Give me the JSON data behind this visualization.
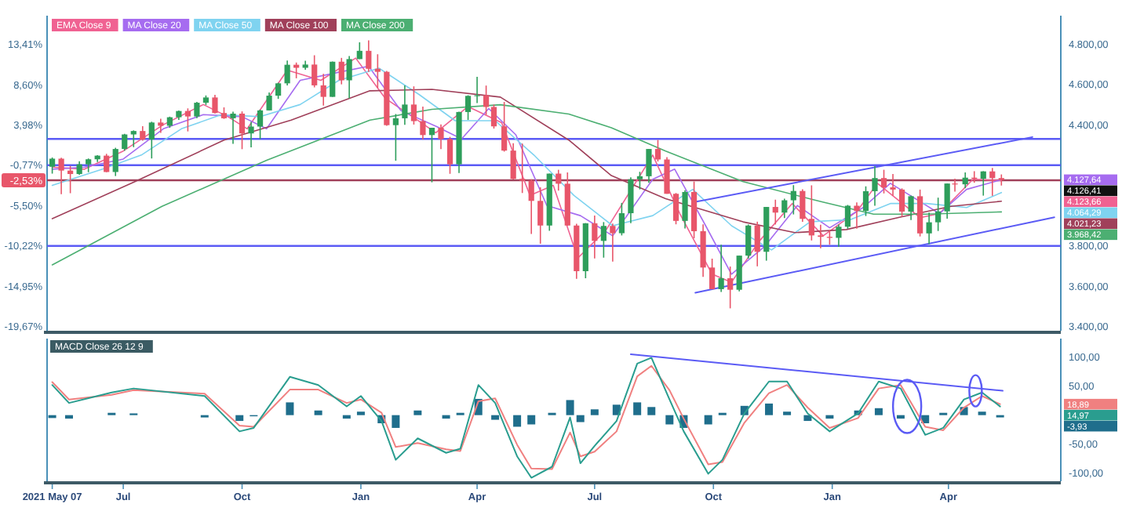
{
  "chart_data": [
    {
      "type": "candlestick",
      "colors": [
        "#2e9e5b",
        "#e8566a",
        "#e8566a",
        "#2e9e5b",
        "#2e9e5b",
        "#2e9e5b",
        "#e8566a",
        "#2e9e5b",
        "#2e9e5b",
        "#2e9e5b",
        "#e8566a",
        "#2e9e5b",
        "#e8566a",
        "#2e9e5b",
        "#2e9e5b",
        "#e8566a",
        "#2e9e5b",
        "#2e9e5b",
        "#e8566a",
        "#e8566a",
        "#2e9e5b",
        "#e8566a",
        "#2e9e5b",
        "#2e9e5b",
        "#2e9e5b",
        "#2e9e5b",
        "#2e9e5b",
        "#e8566a",
        "#2e9e5b",
        "#e8566a",
        "#e8566a",
        "#2e9e5b",
        "#e8566a",
        "#2e9e5b",
        "#2e9e5b",
        "#e8566a",
        "#e8566a",
        "#e8566a",
        "#2e9e5b",
        "#2e9e5b",
        "#e8566a",
        "#e8566a",
        "#2e9e5b",
        "#e8566a",
        "#e8566a",
        "#2e9e5b",
        "#2e9e5b",
        "#2e9e5b",
        "#e8566a",
        "#e8566a",
        "#e8566a",
        "#e8566a",
        "#e8566a",
        "#e8566a",
        "#e8566a",
        "#2e9e5b",
        "#e8566a",
        "#e8566a",
        "#e8566a",
        "#2e9e5b",
        "#e8566a",
        "#2e9e5b",
        "#e8566a",
        "#2e9e5b",
        "#2e9e5b",
        "#2e9e5b",
        "#2e9e5b",
        "#e8566a",
        "#e8566a",
        "#e8566a",
        "#2e9e5b",
        "#e8566a",
        "#e8566a",
        "#e8566a",
        "#2e9e5b",
        "#e8566a",
        "#2e9e5b",
        "#2e9e5b",
        "#e8566a",
        "#2e9e5b",
        "#e8566a",
        "#2e9e5b",
        "#2e9e5b",
        "#e8566a",
        "#e8566a",
        "#e8566a",
        "#e8566a",
        "#2e9e5b",
        "#2e9e5b",
        "#e8566a",
        "#2e9e5b",
        "#2e9e5b",
        "#e8566a",
        "#e8566a",
        "#e8566a",
        "#2e9e5b",
        "#e8566a",
        "#2e9e5b",
        "#2e9e5b",
        "#2e9e5b",
        "#e8566a",
        "#2e9e5b",
        "#e8566a",
        "#2e9e5b",
        "#e8566a",
        "#e8566a"
      ],
      "x": [
        "2021-05-07",
        "2021-05-14",
        "2021-05-21",
        "2021-05-28",
        "2021-06-04",
        "2021-06-11",
        "2021-06-18",
        "2021-06-25",
        "2021-07-02",
        "2021-07-09",
        "2021-07-16",
        "2021-07-23",
        "2021-07-30",
        "2021-08-06",
        "2021-08-13",
        "2021-08-20",
        "2021-08-27",
        "2021-09-03",
        "2021-09-10",
        "2021-09-17",
        "2021-09-24",
        "2021-10-01",
        "2021-10-08",
        "2021-10-15",
        "2021-10-22",
        "2021-10-29",
        "2021-11-05",
        "2021-11-12",
        "2021-11-19",
        "2021-11-26",
        "2021-12-03",
        "2021-12-10",
        "2021-12-17",
        "2021-12-23",
        "2021-12-31",
        "2022-01-07",
        "2022-01-14",
        "2022-01-21",
        "2022-01-28",
        "2022-02-04",
        "2022-02-11",
        "2022-02-18",
        "2022-02-25",
        "2022-03-04",
        "2022-03-11",
        "2022-03-18",
        "2022-03-25",
        "2022-04-01",
        "2022-04-08",
        "2022-04-14",
        "2022-04-22",
        "2022-04-29",
        "2022-05-06",
        "2022-05-13",
        "2022-05-20",
        "2022-05-27",
        "2022-06-03",
        "2022-06-10",
        "2022-06-17",
        "2022-06-24",
        "2022-07-01",
        "2022-07-08",
        "2022-07-15",
        "2022-07-22",
        "2022-07-29",
        "2022-08-05",
        "2022-08-12",
        "2022-08-19",
        "2022-08-26",
        "2022-09-02",
        "2022-09-09",
        "2022-09-16",
        "2022-09-23",
        "2022-09-30",
        "2022-10-07",
        "2022-10-14",
        "2022-10-21",
        "2022-10-28",
        "2022-11-04",
        "2022-11-11",
        "2022-11-18",
        "2022-11-25",
        "2022-12-02",
        "2022-12-09",
        "2022-12-16",
        "2022-12-23",
        "2022-12-30",
        "2023-01-06",
        "2023-01-13",
        "2023-01-20",
        "2023-01-27",
        "2023-02-03",
        "2023-02-10",
        "2023-02-17",
        "2023-02-24",
        "2023-03-03",
        "2023-03-10",
        "2023-03-17",
        "2023-03-24",
        "2023-03-31",
        "2023-04-06",
        "2023-04-14",
        "2023-04-21",
        "2023-04-28",
        "2023-05-05",
        "2023-05-12"
      ],
      "ohlc": [
        [
          4192,
          4238,
          4158,
          4232
        ],
        [
          4232,
          4237,
          4056,
          4173
        ],
        [
          4173,
          4196,
          4061,
          4156
        ],
        [
          4156,
          4219,
          4152,
          4204
        ],
        [
          4204,
          4233,
          4165,
          4229
        ],
        [
          4229,
          4249,
          4215,
          4247
        ],
        [
          4247,
          4256,
          4165,
          4166
        ],
        [
          4166,
          4286,
          4146,
          4280
        ],
        [
          4280,
          4355,
          4271,
          4352
        ],
        [
          4352,
          4372,
          4289,
          4369
        ],
        [
          4369,
          4393,
          4321,
          4327
        ],
        [
          4327,
          4415,
          4233,
          4411
        ],
        [
          4411,
          4430,
          4360,
          4395
        ],
        [
          4395,
          4440,
          4385,
          4437
        ],
        [
          4437,
          4470,
          4424,
          4468
        ],
        [
          4468,
          4481,
          4367,
          4441
        ],
        [
          4441,
          4513,
          4433,
          4509
        ],
        [
          4509,
          4545,
          4498,
          4535
        ],
        [
          4535,
          4548,
          4456,
          4458
        ],
        [
          4458,
          4486,
          4429,
          4432
        ],
        [
          4432,
          4465,
          4306,
          4455
        ],
        [
          4455,
          4466,
          4279,
          4357
        ],
        [
          4357,
          4414,
          4288,
          4391
        ],
        [
          4391,
          4475,
          4329,
          4471
        ],
        [
          4471,
          4560,
          4471,
          4544
        ],
        [
          4544,
          4608,
          4528,
          4605
        ],
        [
          4605,
          4718,
          4595,
          4697
        ],
        [
          4697,
          4708,
          4630,
          4682
        ],
        [
          4682,
          4717,
          4672,
          4698
        ],
        [
          4698,
          4744,
          4585,
          4595
        ],
        [
          4595,
          4652,
          4495,
          4538
        ],
        [
          4538,
          4713,
          4538,
          4712
        ],
        [
          4712,
          4731,
          4600,
          4620
        ],
        [
          4620,
          4740,
          4531,
          4725
        ],
        [
          4725,
          4808,
          4725,
          4766
        ],
        [
          4766,
          4818,
          4662,
          4677
        ],
        [
          4677,
          4749,
          4582,
          4662
        ],
        [
          4662,
          4666,
          4395,
          4398
        ],
        [
          4398,
          4453,
          4222,
          4432
        ],
        [
          4432,
          4595,
          4400,
          4500
        ],
        [
          4500,
          4590,
          4401,
          4418
        ],
        [
          4418,
          4490,
          4327,
          4349
        ],
        [
          4349,
          4385,
          4115,
          4385
        ],
        [
          4385,
          4402,
          4279,
          4329
        ],
        [
          4329,
          4340,
          4157,
          4204
        ],
        [
          4204,
          4465,
          4161,
          4463
        ],
        [
          4463,
          4546,
          4424,
          4543
        ],
        [
          4543,
          4637,
          4507,
          4546
        ],
        [
          4546,
          4594,
          4450,
          4488
        ],
        [
          4488,
          4500,
          4381,
          4392
        ],
        [
          4392,
          4513,
          4267,
          4272
        ],
        [
          4272,
          4308,
          4129,
          4132
        ],
        [
          4132,
          4307,
          4062,
          4123
        ],
        [
          4123,
          4130,
          3859,
          4023
        ],
        [
          4023,
          4090,
          3811,
          3901
        ],
        [
          3901,
          4158,
          3875,
          4158
        ],
        [
          4158,
          4177,
          4074,
          4108
        ],
        [
          4108,
          4164,
          3900,
          3901
        ],
        [
          3901,
          3910,
          3637,
          3675
        ],
        [
          3675,
          3913,
          3640,
          3912
        ],
        [
          3912,
          3950,
          3738,
          3825
        ],
        [
          3825,
          3918,
          3742,
          3899
        ],
        [
          3899,
          3911,
          3722,
          3863
        ],
        [
          3863,
          4013,
          3852,
          3962
        ],
        [
          3962,
          4140,
          3913,
          4130
        ],
        [
          4130,
          4167,
          4080,
          4145
        ],
        [
          4145,
          4280,
          4112,
          4280
        ],
        [
          4280,
          4325,
          4218,
          4228
        ],
        [
          4228,
          4240,
          4058,
          4058
        ],
        [
          4058,
          4062,
          3907,
          3924
        ],
        [
          3924,
          4076,
          3886,
          4067
        ],
        [
          4067,
          4119,
          3838,
          3873
        ],
        [
          3873,
          3907,
          3647,
          3693
        ],
        [
          3693,
          3737,
          3585,
          3586
        ],
        [
          3586,
          3806,
          3572,
          3640
        ],
        [
          3640,
          3698,
          3491,
          3583
        ],
        [
          3583,
          3752,
          3575,
          3752
        ],
        [
          3752,
          3906,
          3737,
          3901
        ],
        [
          3901,
          3920,
          3699,
          3771
        ],
        [
          3771,
          3993,
          3727,
          3993
        ],
        [
          3993,
          4029,
          3906,
          3965
        ],
        [
          3965,
          4034,
          3938,
          4026
        ],
        [
          4026,
          4101,
          3956,
          4072
        ],
        [
          4072,
          4080,
          3919,
          3934
        ],
        [
          3934,
          4100,
          3827,
          3852
        ],
        [
          3852,
          3905,
          3788,
          3845
        ],
        [
          3845,
          3878,
          3806,
          3840
        ],
        [
          3840,
          3906,
          3795,
          3895
        ],
        [
          3895,
          4003,
          3885,
          3999
        ],
        [
          3999,
          4015,
          3885,
          3973
        ],
        [
          3973,
          4095,
          3948,
          4071
        ],
        [
          4071,
          4195,
          3999,
          4136
        ],
        [
          4136,
          4177,
          4060,
          4090
        ],
        [
          4090,
          4156,
          4048,
          4079
        ],
        [
          4079,
          4085,
          3944,
          3970
        ],
        [
          3970,
          4049,
          3928,
          4046
        ],
        [
          4046,
          4079,
          3847,
          3862
        ],
        [
          3862,
          3965,
          3809,
          3917
        ],
        [
          3917,
          4039,
          3874,
          3971
        ],
        [
          3971,
          4110,
          3935,
          4109
        ],
        [
          4109,
          4133,
          4069,
          4105
        ],
        [
          4105,
          4164,
          4086,
          4138
        ],
        [
          4138,
          4170,
          4113,
          4133
        ],
        [
          4133,
          4170,
          4049,
          4169
        ],
        [
          4169,
          4186,
          4048,
          4136
        ],
        [
          4136,
          4154,
          4099,
          4126.41
        ]
      ],
      "series": [
        {
          "name": "EMA Close 9",
          "type": "line",
          "color": "#f06292",
          "x": [
            "2021-05-07",
            "2021-06-01",
            "2021-07-01",
            "2021-08-01",
            "2021-09-01",
            "2021-09-20",
            "2021-10-05",
            "2021-11-05",
            "2021-12-01",
            "2021-12-28",
            "2022-01-20",
            "2022-02-10",
            "2022-02-28",
            "2022-03-25",
            "2022-04-20",
            "2022-05-12",
            "2022-05-30",
            "2022-06-18",
            "2022-07-10",
            "2022-08-15",
            "2022-09-05",
            "2022-09-30",
            "2022-10-15",
            "2022-11-05",
            "2022-12-01",
            "2022-12-25",
            "2023-01-20",
            "2023-02-05",
            "2023-03-10",
            "2023-03-25",
            "2023-04-20",
            "2023-05-12"
          ],
          "values": [
            4190,
            4180,
            4270,
            4400,
            4500,
            4440,
            4380,
            4670,
            4620,
            4730,
            4530,
            4440,
            4360,
            4490,
            4410,
            4050,
            4100,
            3740,
            3880,
            4250,
            3960,
            3660,
            3620,
            3820,
            4010,
            3850,
            3970,
            4110,
            3940,
            3960,
            4130,
            4123.66
          ]
        },
        {
          "name": "MA Close 20",
          "type": "line",
          "color": "#a66cf0",
          "x": [
            "2021-05-07",
            "2021-06-01",
            "2021-07-01",
            "2021-08-01",
            "2021-09-01",
            "2021-10-01",
            "2021-10-20",
            "2021-11-15",
            "2021-12-15",
            "2022-01-07",
            "2022-02-01",
            "2022-03-01",
            "2022-03-20",
            "2022-04-10",
            "2022-05-01",
            "2022-05-25",
            "2022-06-20",
            "2022-07-15",
            "2022-08-15",
            "2022-09-01",
            "2022-09-25",
            "2022-10-15",
            "2022-11-10",
            "2022-12-05",
            "2022-12-30",
            "2023-01-25",
            "2023-02-15",
            "2023-03-10",
            "2023-03-25",
            "2023-04-15",
            "2023-05-12"
          ],
          "values": [
            4180,
            4190,
            4230,
            4380,
            4450,
            4440,
            4380,
            4620,
            4660,
            4690,
            4470,
            4390,
            4330,
            4480,
            4350,
            4000,
            3950,
            3850,
            4130,
            4180,
            3900,
            3660,
            3800,
            4000,
            3890,
            3990,
            4110,
            4020,
            3960,
            4080,
            4127.64
          ]
        },
        {
          "name": "MA Close 50",
          "type": "line",
          "color": "#7fd3f0",
          "x": [
            "2021-05-07",
            "2021-06-15",
            "2021-07-15",
            "2021-08-15",
            "2021-09-15",
            "2021-10-15",
            "2021-11-15",
            "2021-12-15",
            "2022-01-15",
            "2022-02-15",
            "2022-03-15",
            "2022-04-15",
            "2022-05-15",
            "2022-06-15",
            "2022-07-15",
            "2022-08-15",
            "2022-09-15",
            "2022-10-15",
            "2022-11-15",
            "2022-12-15",
            "2023-01-15",
            "2023-02-15",
            "2023-03-15",
            "2023-04-15",
            "2023-05-12"
          ],
          "values": [
            4100,
            4180,
            4250,
            4380,
            4450,
            4440,
            4500,
            4620,
            4680,
            4550,
            4420,
            4420,
            4250,
            4050,
            3900,
            3950,
            4080,
            3900,
            3780,
            3920,
            3930,
            4010,
            4010,
            3990,
            4064.29
          ]
        },
        {
          "name": "MA Close 100",
          "type": "line",
          "color": "#a0405a",
          "x": [
            "2021-05-07",
            "2021-07-10",
            "2021-09-17",
            "2021-11-08",
            "2022-01-08",
            "2022-02-25",
            "2022-04-19",
            "2022-06-11",
            "2022-07-14",
            "2022-08-25",
            "2022-10-24",
            "2022-12-03",
            "2023-01-12",
            "2023-02-22",
            "2023-04-03",
            "2023-05-12"
          ],
          "values": [
            3935,
            4118,
            4324,
            4423,
            4568,
            4575,
            4537,
            4324,
            4148,
            4034,
            3919,
            3866,
            3881,
            3942,
            3996,
            4021.23
          ]
        },
        {
          "name": "MA Close 200",
          "type": "line",
          "color": "#4caf72",
          "x": [
            "2021-05-07",
            "2021-07-31",
            "2021-10-20",
            "2022-01-08",
            "2022-02-25",
            "2022-04-19",
            "2022-06-11",
            "2022-07-14",
            "2022-08-25",
            "2022-10-24",
            "2022-12-24",
            "2023-02-02",
            "2023-03-14",
            "2023-05-12"
          ],
          "values": [
            3706,
            3996,
            4224,
            4423,
            4476,
            4499,
            4453,
            4385,
            4270,
            4118,
            4018,
            3957,
            3957,
            3968.42
          ]
        },
        {
          "type": "line",
          "color": "#5b5bf5",
          "x": [
            "2022-09-17",
            "2023-06-05"
          ],
          "values": [
            4018,
            4339
          ]
        },
        {
          "type": "line",
          "color": "#5b5bf5",
          "x": [
            "2022-09-17",
            "2023-06-22"
          ],
          "values": [
            3568,
            3942
          ]
        }
      ],
      "ref_lines": [
        {
          "axis": "y",
          "value": 4330,
          "color": "#5b5bf5"
        },
        {
          "axis": "y",
          "value": 4200,
          "color": "#5b5bf5"
        },
        {
          "axis": "y",
          "value": 3800,
          "color": "#5b5bf5"
        },
        {
          "axis": "y2",
          "value": -2.53,
          "color": "#a0405a",
          "label": "-2,53%"
        }
      ],
      "annotations": [
        "4.127,64",
        "4.126,41",
        "4.123,66",
        "4.064,29",
        "4.021,23",
        "3.968,42"
      ],
      "xlim": [
        "2021-05-03",
        "2023-06-27"
      ],
      "ylim": [
        3380,
        4940
      ],
      "yticks": [
        {
          "value": 3400,
          "label": "3.400,00"
        },
        {
          "value": 3600,
          "label": "3.600,00"
        },
        {
          "value": 3800,
          "label": "3.800,00"
        },
        {
          "value": 4400,
          "label": "4.400,00"
        },
        {
          "value": 4600,
          "label": "4.600,00"
        },
        {
          "value": 4800,
          "label": "4.800,00"
        }
      ],
      "y2lim": [
        -20.14,
        16.72
      ],
      "y2ticks": [
        {
          "value": -19.67,
          "label": "-19,67%"
        },
        {
          "value": -14.95,
          "label": "-14,95%"
        },
        {
          "value": -10.22,
          "label": "-10,22%"
        },
        {
          "value": -5.5,
          "label": "-5,50%"
        },
        {
          "value": -0.77,
          "label": "-0,77%"
        },
        {
          "value": 3.98,
          "label": "3,98%"
        },
        {
          "value": 8.6,
          "label": "8,60%"
        },
        {
          "value": 13.41,
          "label": "13,41%"
        }
      ],
      "legend": "top left",
      "tick_labels": "y"
    },
    {
      "type": "line",
      "title": "MACD Close 26 12 9",
      "annotations": [
        "18,89",
        "14,97",
        "-3,93"
      ],
      "x": [
        "2021-05-07",
        "2021-05-20",
        "2021-06-22",
        "2021-07-09",
        "2021-09-02",
        "2021-09-29",
        "2021-10-10",
        "2021-11-07",
        "2021-11-29",
        "2021-12-21",
        "2022-01-01",
        "2022-01-17",
        "2022-01-28",
        "2022-02-14",
        "2022-03-08",
        "2022-03-19",
        "2022-04-02",
        "2022-04-15",
        "2022-05-02",
        "2022-05-13",
        "2022-05-29",
        "2022-06-12",
        "2022-06-20",
        "2022-07-01",
        "2022-07-18",
        "2022-08-03",
        "2022-08-14",
        "2022-08-28",
        "2022-09-08",
        "2022-09-27",
        "2022-10-08",
        "2022-10-25",
        "2022-11-13",
        "2022-11-27",
        "2022-12-13",
        "2022-12-30",
        "2023-01-21",
        "2023-02-06",
        "2023-02-23",
        "2023-03-14",
        "2023-03-28",
        "2023-04-13",
        "2023-04-27",
        "2023-05-11"
      ],
      "series": [
        {
          "type": "bar",
          "color": "#1f6e8c",
          "values": [
            -5,
            -6,
            4,
            3,
            -4,
            -10,
            -2,
            22,
            8,
            -6,
            6,
            -14,
            -22,
            8,
            -6,
            4,
            28,
            -8,
            -20,
            -16,
            4,
            26,
            -12,
            10,
            18,
            22,
            14,
            -16,
            -22,
            -16,
            4,
            16,
            20,
            6,
            -10,
            -6,
            8,
            12,
            -6,
            -14,
            4,
            14,
            6,
            -3.93
          ]
        },
        {
          "type": "line",
          "color": "#f08080",
          "values": [
            57,
            27,
            35,
            43,
            37,
            -18,
            -20,
            44,
            44,
            21,
            27,
            4,
            -55,
            -48,
            -59,
            -62,
            24,
            29,
            -51,
            -92,
            -93,
            -30,
            -71,
            -63,
            -28,
            67,
            85,
            43,
            -6,
            -85,
            -81,
            -13,
            38,
            52,
            13,
            -22,
            -5,
            46,
            52,
            -20,
            -26,
            13,
            33,
            18.89
          ]
        },
        {
          "type": "line",
          "color": "#2a9d8f",
          "values": [
            52,
            21,
            39,
            46,
            33,
            -28,
            -22,
            66,
            52,
            15,
            33,
            -10,
            -77,
            -40,
            -65,
            -58,
            52,
            21,
            -71,
            -108,
            -89,
            -4,
            -83,
            -53,
            -10,
            89,
            99,
            27,
            -28,
            -101,
            -77,
            3,
            58,
            58,
            3,
            -28,
            3,
            58,
            46,
            -34,
            -22,
            27,
            39,
            14.97
          ]
        },
        {
          "type": "line",
          "color": "#5b5bf5",
          "x": [
            "2022-07-29",
            "2023-05-13"
          ],
          "values": [
            105,
            42
          ]
        }
      ],
      "xlim": [
        "2021-05-03",
        "2023-06-27"
      ],
      "xticks": [
        {
          "value": "2021-05-07",
          "label": "2021 May 07"
        },
        {
          "value": "2021-07-01",
          "label": "Jul"
        },
        {
          "value": "2021-10-01",
          "label": "Oct"
        },
        {
          "value": "2022-01-01",
          "label": "Jan"
        },
        {
          "value": "2022-04-01",
          "label": "Apr"
        },
        {
          "value": "2022-07-01",
          "label": "Jul"
        },
        {
          "value": "2022-10-01",
          "label": "Oct"
        },
        {
          "value": "2023-01-01",
          "label": "Jan"
        },
        {
          "value": "2023-04-01",
          "label": "Apr"
        }
      ],
      "ylim": [
        -114,
        132
      ],
      "yticks": [
        {
          "value": -100,
          "label": "-100,00"
        },
        {
          "value": -50,
          "label": "-50,00"
        },
        {
          "value": 50,
          "label": "50,00"
        },
        {
          "value": 100,
          "label": "100,00"
        }
      ]
    }
  ]
}
